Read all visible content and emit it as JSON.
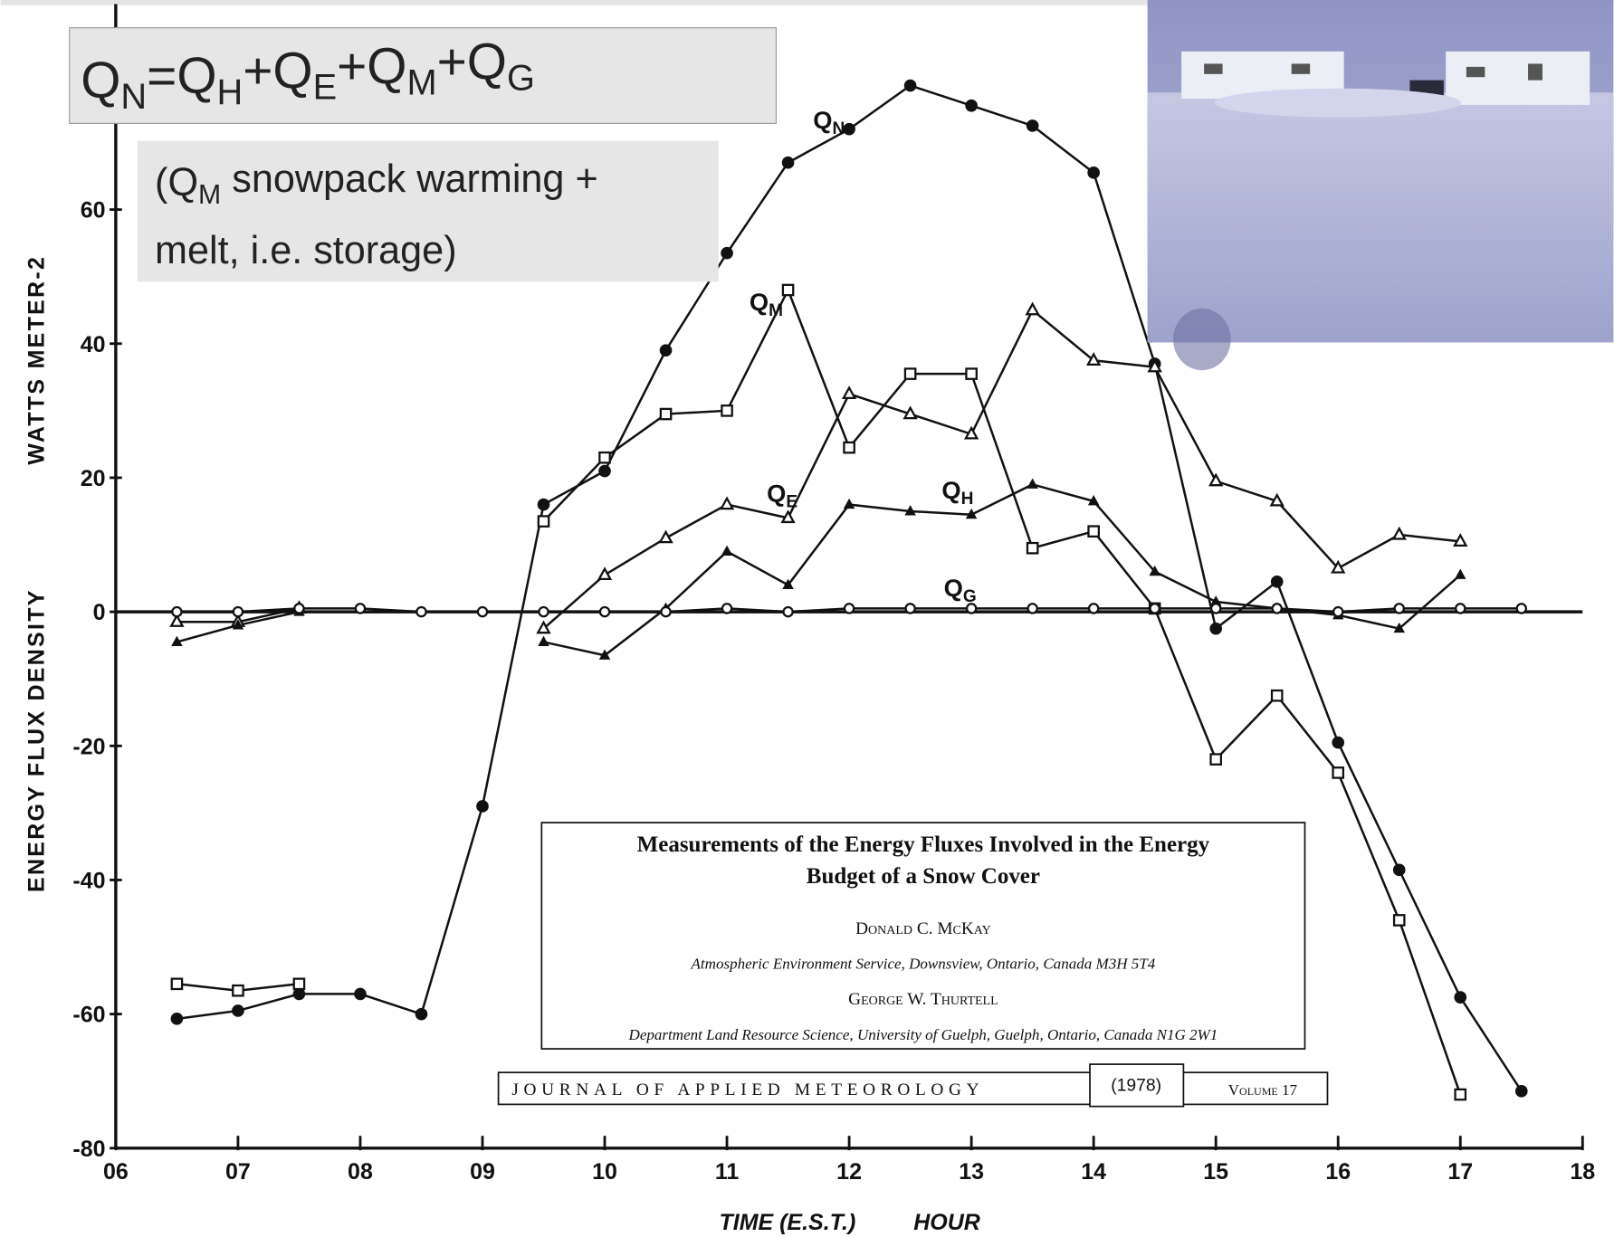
{
  "chart_data": {
    "type": "line",
    "equation": "QN=QH+QE+QM+QG",
    "note": [
      "(QM snowpack warming +",
      "melt, i.e. storage)"
    ],
    "ylabel": [
      "ENERGY FLUX DENSITY",
      "WATTS METER-2"
    ],
    "xlabel": [
      "TIME (E.S.T.)",
      "HOUR"
    ],
    "x": [
      6.5,
      7,
      7.5,
      8,
      8.5,
      9,
      9.5,
      10,
      10.5,
      11,
      11.5,
      12,
      12.5,
      13,
      13.5,
      14,
      14.5,
      15,
      15.5,
      16,
      16.5,
      17,
      17.5
    ],
    "series": [
      {
        "name": "QN",
        "color": "#111111",
        "marker": "filled-circle",
        "values": [
          -60.7,
          -59.5,
          -57,
          -57,
          -60,
          -29,
          16,
          21,
          39,
          53.5,
          67,
          72,
          78.5,
          75.5,
          72.5,
          65.5,
          37,
          -2.5,
          4.5,
          -19.5,
          -38.5,
          -57.5,
          -71.5
        ]
      },
      {
        "name": "QM",
        "color": "#111111",
        "marker": "open-square",
        "values": [
          -55.5,
          -56.5,
          -55.5,
          null,
          null,
          null,
          13.5,
          23,
          29.5,
          30,
          48,
          24.5,
          35.5,
          35.5,
          9.5,
          12,
          0.5,
          -22,
          -12.5,
          -24,
          -46,
          -72,
          null
        ]
      },
      {
        "name": "QE",
        "color": "#111111",
        "marker": "open-triangle",
        "values": [
          -1.5,
          -1.5,
          0.5,
          null,
          null,
          null,
          -2.5,
          5.5,
          11,
          16,
          14,
          32.5,
          29.5,
          26.5,
          45,
          37.5,
          36.5,
          19.5,
          16.5,
          6.5,
          11.5,
          10.5,
          null
        ]
      },
      {
        "name": "QH",
        "color": "#111111",
        "marker": "filled-triangle",
        "values": [
          -4.5,
          -2,
          0,
          null,
          null,
          null,
          -4.5,
          -6.5,
          0.5,
          9,
          4,
          16,
          15,
          14.5,
          19,
          16.5,
          6,
          1.5,
          0.5,
          -0.5,
          -2.5,
          5.5,
          null
        ]
      },
      {
        "name": "QG",
        "color": "#111111",
        "marker": "open-circle",
        "values": [
          0,
          0,
          0.5,
          0.5,
          0,
          0,
          0,
          0,
          0,
          0.5,
          0,
          0.5,
          0.5,
          0.5,
          0.5,
          0.5,
          0.5,
          0.5,
          0.5,
          0,
          0.5,
          0.5,
          0.5
        ]
      }
    ],
    "xlim": [
      6,
      18
    ],
    "xticks": [
      {
        "value": 6,
        "label": "06"
      },
      {
        "value": 7,
        "label": "07"
      },
      {
        "value": 8,
        "label": "08"
      },
      {
        "value": 9,
        "label": "09"
      },
      10,
      11,
      12,
      13,
      14,
      15,
      16,
      17,
      18
    ],
    "ylim": [
      -80,
      90
    ],
    "yticks": [
      -80,
      -60,
      -40,
      -20,
      0,
      20,
      40,
      60
    ],
    "paper": {
      "title": [
        "Measurements of the Energy Fluxes Involved in the Energy",
        "Budget of a Snow Cover"
      ],
      "author1": "Donald C. McKay",
      "affiliation1": "Atmospheric Environment Service, Downsview, Ontario, Canada M3H 5T4",
      "author2": "George W. Thurtell",
      "affiliation2": "Department Land Resource Science, University of Guelph, Guelph, Ontario, Canada N1G 2W1",
      "journal": "JOURNAL OF APPLIED METEOROLOGY",
      "year": "(1978)",
      "volume": "Volume 17"
    }
  }
}
